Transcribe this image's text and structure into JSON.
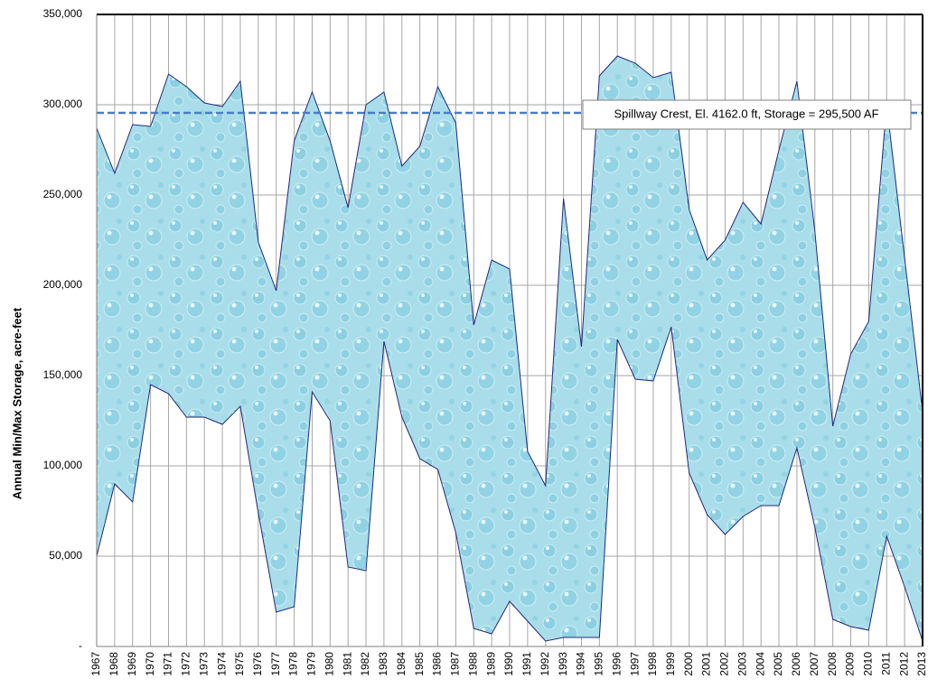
{
  "chart_data": {
    "type": "range-area",
    "y_axis_label": "Annual Min/Max Storage, acre-feet",
    "x": [
      1967,
      1968,
      1969,
      1970,
      1971,
      1972,
      1973,
      1974,
      1975,
      1976,
      1977,
      1978,
      1979,
      1980,
      1981,
      1982,
      1983,
      1984,
      1985,
      1986,
      1987,
      1988,
      1989,
      1990,
      1991,
      1992,
      1993,
      1994,
      1995,
      1996,
      1997,
      1998,
      1999,
      2000,
      2001,
      2002,
      2003,
      2004,
      2005,
      2006,
      2007,
      2008,
      2009,
      2010,
      2011,
      2012,
      2013
    ],
    "xlim": [
      1967,
      2013
    ],
    "xticks": [
      1967,
      1968,
      1969,
      1970,
      1971,
      1972,
      1973,
      1974,
      1975,
      1976,
      1977,
      1978,
      1979,
      1980,
      1981,
      1982,
      1983,
      1984,
      1985,
      1986,
      1987,
      1988,
      1989,
      1990,
      1991,
      1992,
      1993,
      1994,
      1995,
      1996,
      1997,
      1998,
      1999,
      2000,
      2001,
      2002,
      2003,
      2004,
      2005,
      2006,
      2007,
      2008,
      2009,
      2010,
      2011,
      2012,
      2013
    ],
    "series": [
      {
        "values": [
          287000,
          262000,
          289000,
          288000,
          317000,
          310000,
          301000,
          299000,
          313000,
          224000,
          197000,
          280000,
          307000,
          280000,
          243000,
          300000,
          307000,
          266000,
          277000,
          310000,
          290000,
          178000,
          214000,
          209000,
          108000,
          89000,
          248000,
          166000,
          316000,
          327000,
          323000,
          315000,
          318000,
          242000,
          214000,
          225000,
          246000,
          234000,
          275000,
          313000,
          230000,
          122000,
          162000,
          180000,
          300000,
          215000,
          130000
        ]
      },
      {
        "values": [
          50000,
          90000,
          80000,
          145000,
          140000,
          127000,
          127000,
          123000,
          133000,
          74000,
          19000,
          22000,
          141000,
          125000,
          44000,
          42000,
          169000,
          127000,
          104000,
          98000,
          63000,
          10000,
          7000,
          25000,
          14000,
          3000,
          5000,
          5000,
          5000,
          170000,
          148000,
          147000,
          177000,
          96000,
          73000,
          62000,
          72000,
          78000,
          78000,
          110000,
          66000,
          15000,
          11000,
          9000,
          61000,
          33000,
          3000
        ]
      }
    ],
    "fill_color": "#a9dde9",
    "line_color": "#1f2a78",
    "ylim": [
      0,
      350000
    ],
    "yticks": [
      {
        "value": 0,
        "label": "-"
      },
      {
        "value": 50000,
        "label": "50,000"
      },
      {
        "value": 100000,
        "label": "100,000"
      },
      {
        "value": 150000,
        "label": "150,000"
      },
      {
        "value": 200000,
        "label": "200,000"
      },
      {
        "value": 250000,
        "label": "250,000"
      },
      {
        "value": 300000,
        "label": "300,000"
      },
      {
        "value": 350000,
        "label": "350,000"
      }
    ],
    "grid": true,
    "reference_line": {
      "value": 295500,
      "label": "Spillway Crest, El. 4162.0 ft, Storage = 295,500 AF",
      "color": "#4a7cc4"
    }
  }
}
